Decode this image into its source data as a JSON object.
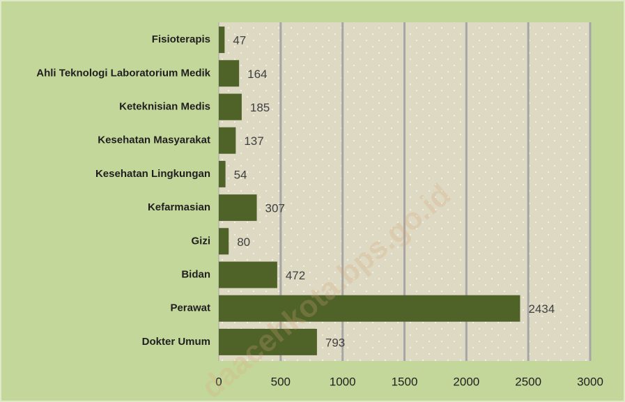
{
  "chart_data": {
    "type": "bar",
    "orientation": "horizontal",
    "categories": [
      "Fisioterapis",
      "Ahli Teknologi Laboratorium Medik",
      "Keteknisian Medis",
      "Kesehatan Masyarakat",
      "Kesehatan Lingkungan",
      "Kefarmasian",
      "Gizi",
      "Bidan",
      "Perawat",
      "Dokter Umum"
    ],
    "values": [
      47,
      164,
      185,
      137,
      54,
      307,
      80,
      472,
      2434,
      793
    ],
    "color": "#4f6228",
    "xlim": [
      0,
      3000
    ],
    "xticks": [
      0,
      500,
      1000,
      1500,
      2000,
      2500,
      3000
    ],
    "grid": true,
    "watermark": "daacehkota.bps.go.id"
  }
}
